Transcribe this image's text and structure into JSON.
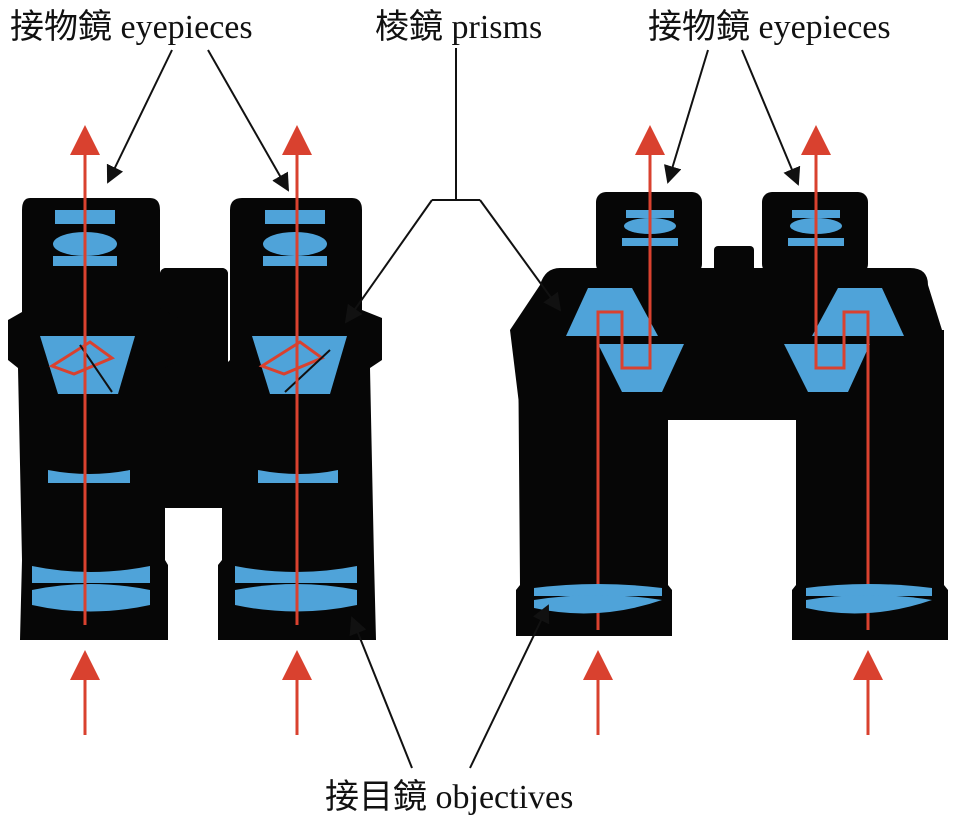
{
  "labels": {
    "eyepieces_left": "接物鏡 eyepieces",
    "prisms": "棱鏡 prisms",
    "eyepieces_right": "接物鏡 eyepieces",
    "objectives": "接目鏡 objectives"
  },
  "colors": {
    "body": "#060606",
    "lens": "#4fa3d9",
    "light_ray": "#d9412f",
    "pointer": "#1a1a1a",
    "background": "#ffffff"
  }
}
